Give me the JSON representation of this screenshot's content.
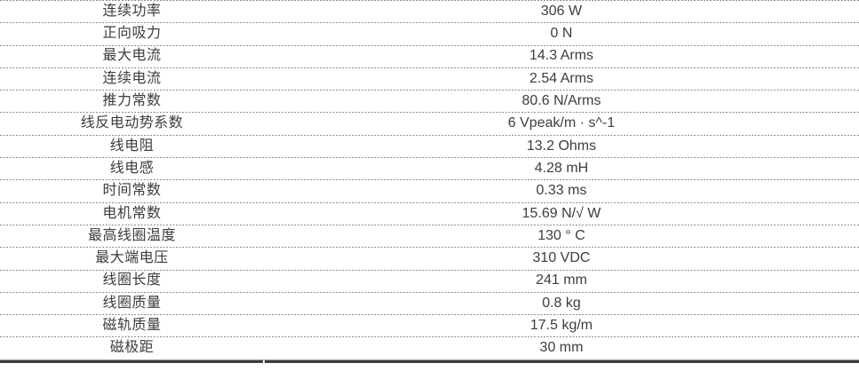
{
  "table": {
    "rows": [
      {
        "label": "连续功率",
        "value": "306 W"
      },
      {
        "label": "正向吸力",
        "value": "0 N"
      },
      {
        "label": "最大电流",
        "value": "14.3 Arms"
      },
      {
        "label": "连续电流",
        "value": "2.54 Arms"
      },
      {
        "label": "推力常数",
        "value": "80.6 N/Arms"
      },
      {
        "label": "线反电动势系数",
        "value": "6 Vpeak/m · s^-1"
      },
      {
        "label": "线电阻",
        "value": "13.2 Ohms"
      },
      {
        "label": "线电感",
        "value": "4.28 mH"
      },
      {
        "label": "时间常数",
        "value": "0.33 ms"
      },
      {
        "label": "电机常数",
        "value": "15.69 N/√ W"
      },
      {
        "label": "最高线圈温度",
        "value": "130 ° C"
      },
      {
        "label": "最大端电压",
        "value": "310 VDC"
      },
      {
        "label": "线圈长度",
        "value": "241 mm"
      },
      {
        "label": "线圈质量",
        "value": "0.8 kg"
      },
      {
        "label": "磁轨质量",
        "value": "17.5 kg/m"
      },
      {
        "label": "磁极距",
        "value": "30 mm"
      }
    ]
  },
  "colors": {
    "background": "#ffffff",
    "text": "#3d3d3d",
    "row_divider": "#8c8c8c",
    "bottom_rule_thin": "#9a9a9a",
    "bottom_rule_thick": "#3c3c3c"
  }
}
